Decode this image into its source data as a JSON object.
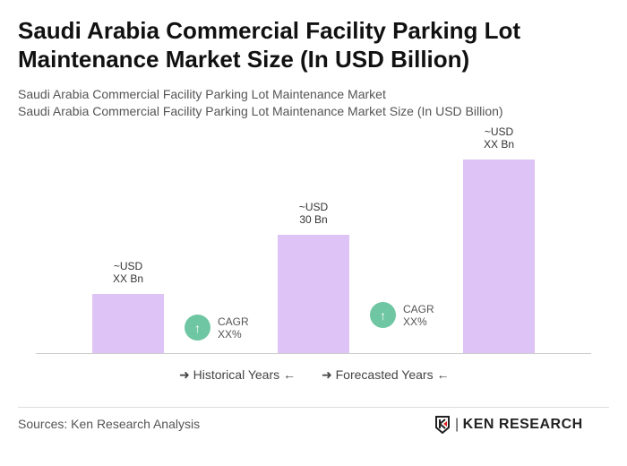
{
  "title": "Saudi Arabia Commercial Facility Parking Lot Maintenance Market Size (In USD Billion)",
  "subtitle1": "Saudi Arabia Commercial Facility Parking Lot Maintenance Market",
  "subtitle2": "Saudi Arabia Commercial Facility Parking Lot Maintenance Market Size (In USD Billion)",
  "chart_data": {
    "type": "bar",
    "categories": [
      "",
      "",
      ""
    ],
    "values": [
      15,
      30,
      49
    ],
    "data_labels": [
      [
        "~USD",
        "XX Bn"
      ],
      [
        "~USD",
        "30 Bn"
      ],
      [
        "~USD",
        "XX Bn"
      ]
    ],
    "bar_color": "#dec3f6",
    "cagr": [
      {
        "label": "CAGR",
        "value": "XX%"
      },
      {
        "label": "CAGR",
        "value": "XX%"
      }
    ],
    "cagr_color": "#6fc6a3",
    "legend": [
      "Historical Years",
      "Forecasted Years"
    ],
    "grid": false
  },
  "sources": "Sources: Ken Research Analysis",
  "logo": "KEN RESEARCH"
}
